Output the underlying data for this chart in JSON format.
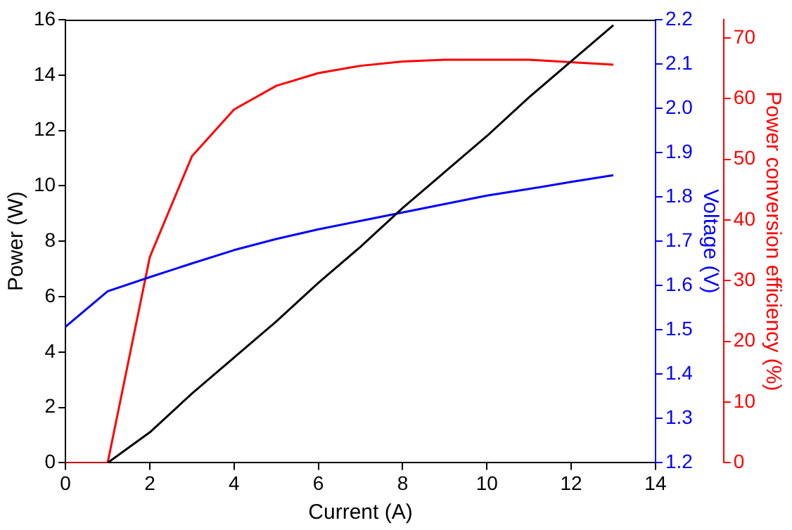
{
  "chart_data": {
    "type": "line",
    "xlabel": "Current (A)",
    "ylabel": "Power (W)",
    "y2label": "Voltage (V)",
    "y3label": "Power conversion efficiency (%)",
    "x": [
      0,
      1,
      2,
      3,
      4,
      5,
      6,
      7,
      8,
      9,
      10,
      11,
      12,
      13
    ],
    "xlim": [
      0,
      14
    ],
    "xticks": [
      0,
      2,
      4,
      6,
      8,
      10,
      12,
      14
    ],
    "ylim": [
      0,
      16
    ],
    "yticks": [
      0,
      2,
      4,
      6,
      8,
      10,
      12,
      14,
      16
    ],
    "y2lim": [
      1.2,
      2.2
    ],
    "y2ticks": [
      1.2,
      1.3,
      1.4,
      1.5,
      1.6,
      1.7,
      1.8,
      1.9,
      {
        "value": 2,
        "label": "2.0"
      },
      2.1,
      2.2
    ],
    "y3lim": [
      0,
      73
    ],
    "y3ticks": [
      0,
      10,
      20,
      30,
      40,
      50,
      60,
      70
    ],
    "grid": false,
    "legend": false,
    "marker": "none",
    "line_style": "solid",
    "series": [
      {
        "color": "#000000",
        "values": [
          null,
          0,
          1.1,
          2.5,
          3.8,
          5.1,
          6.5,
          7.8,
          9.2,
          10.5,
          11.8,
          13.2,
          14.5,
          15.8
        ]
      },
      {
        "color": "#0000ff",
        "axis": "y2",
        "values": [
          1.507,
          1.587,
          1.619,
          1.65,
          1.68,
          1.705,
          1.727,
          1.746,
          1.765,
          1.784,
          1.803,
          1.818,
          1.834,
          1.849
        ]
      },
      {
        "color": "#ff0000",
        "axis": "y3",
        "values": [
          0,
          0,
          33.9,
          50.5,
          58.2,
          62.1,
          64.2,
          65.4,
          66.1,
          66.4,
          66.4,
          66.4,
          66,
          65.6
        ]
      }
    ]
  }
}
